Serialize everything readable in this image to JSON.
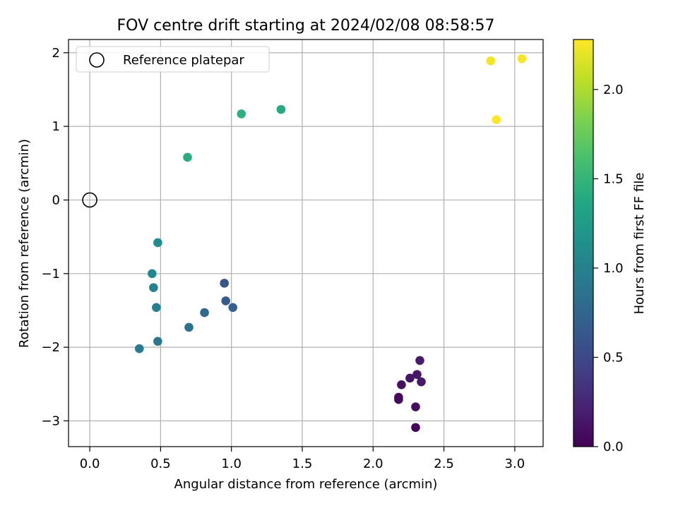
{
  "chart_data": {
    "type": "scatter",
    "title": "FOV centre drift starting at 2024/02/08 08:58:57",
    "xlabel": "Angular distance from reference (arcmin)",
    "ylabel": "Rotation from reference (arcmin)",
    "xlim": [
      -0.15,
      3.2
    ],
    "ylim": [
      -3.35,
      2.18
    ],
    "xticks": [
      0.0,
      0.5,
      1.0,
      1.5,
      2.0,
      2.5,
      3.0
    ],
    "xtick_labels": [
      "0.0",
      "0.5",
      "1.0",
      "1.5",
      "2.0",
      "2.5",
      "3.0"
    ],
    "yticks": [
      -3,
      -2,
      -1,
      0,
      1,
      2
    ],
    "ytick_labels": [
      "−3",
      "−2",
      "−1",
      "0",
      "1",
      "2"
    ],
    "grid": true,
    "colormap": "viridis",
    "colorbar": {
      "label": "Hours from first FF file",
      "range": [
        0.0,
        2.28
      ],
      "ticks": [
        0.0,
        0.5,
        1.0,
        1.5,
        2.0
      ],
      "tick_labels": [
        "0.0",
        "0.5",
        "1.0",
        "1.5",
        "2.0"
      ]
    },
    "reference": {
      "label": "Reference platepar",
      "x": 0.0,
      "y": 0.0,
      "legend_position": "upper-left"
    },
    "points": [
      {
        "x": 2.3,
        "y": -3.09,
        "c": 0.02
      },
      {
        "x": 2.18,
        "y": -2.71,
        "c": 0.04
      },
      {
        "x": 2.18,
        "y": -2.68,
        "c": 0.06
      },
      {
        "x": 2.3,
        "y": -2.81,
        "c": 0.08
      },
      {
        "x": 2.2,
        "y": -2.51,
        "c": 0.1
      },
      {
        "x": 2.26,
        "y": -2.42,
        "c": 0.12
      },
      {
        "x": 2.31,
        "y": -2.37,
        "c": 0.14
      },
      {
        "x": 2.34,
        "y": -2.47,
        "c": 0.16
      },
      {
        "x": 2.33,
        "y": -2.18,
        "c": 0.18
      },
      {
        "x": 0.95,
        "y": -1.13,
        "c": 0.62
      },
      {
        "x": 0.96,
        "y": -1.37,
        "c": 0.66
      },
      {
        "x": 1.01,
        "y": -1.46,
        "c": 0.7
      },
      {
        "x": 0.81,
        "y": -1.53,
        "c": 0.78
      },
      {
        "x": 0.7,
        "y": -1.73,
        "c": 0.86
      },
      {
        "x": 0.48,
        "y": -1.92,
        "c": 0.9
      },
      {
        "x": 0.35,
        "y": -2.02,
        "c": 0.94
      },
      {
        "x": 0.47,
        "y": -1.46,
        "c": 0.98
      },
      {
        "x": 0.45,
        "y": -1.19,
        "c": 1.02
      },
      {
        "x": 0.44,
        "y": -1.0,
        "c": 1.06
      },
      {
        "x": 0.48,
        "y": -0.58,
        "c": 1.1
      },
      {
        "x": 0.69,
        "y": 0.58,
        "c": 1.42
      },
      {
        "x": 1.07,
        "y": 1.17,
        "c": 1.46
      },
      {
        "x": 1.35,
        "y": 1.23,
        "c": 1.4
      },
      {
        "x": 2.83,
        "y": 1.89,
        "c": 2.24
      },
      {
        "x": 3.05,
        "y": 1.92,
        "c": 2.26
      },
      {
        "x": 2.87,
        "y": 1.09,
        "c": 2.28
      }
    ]
  }
}
